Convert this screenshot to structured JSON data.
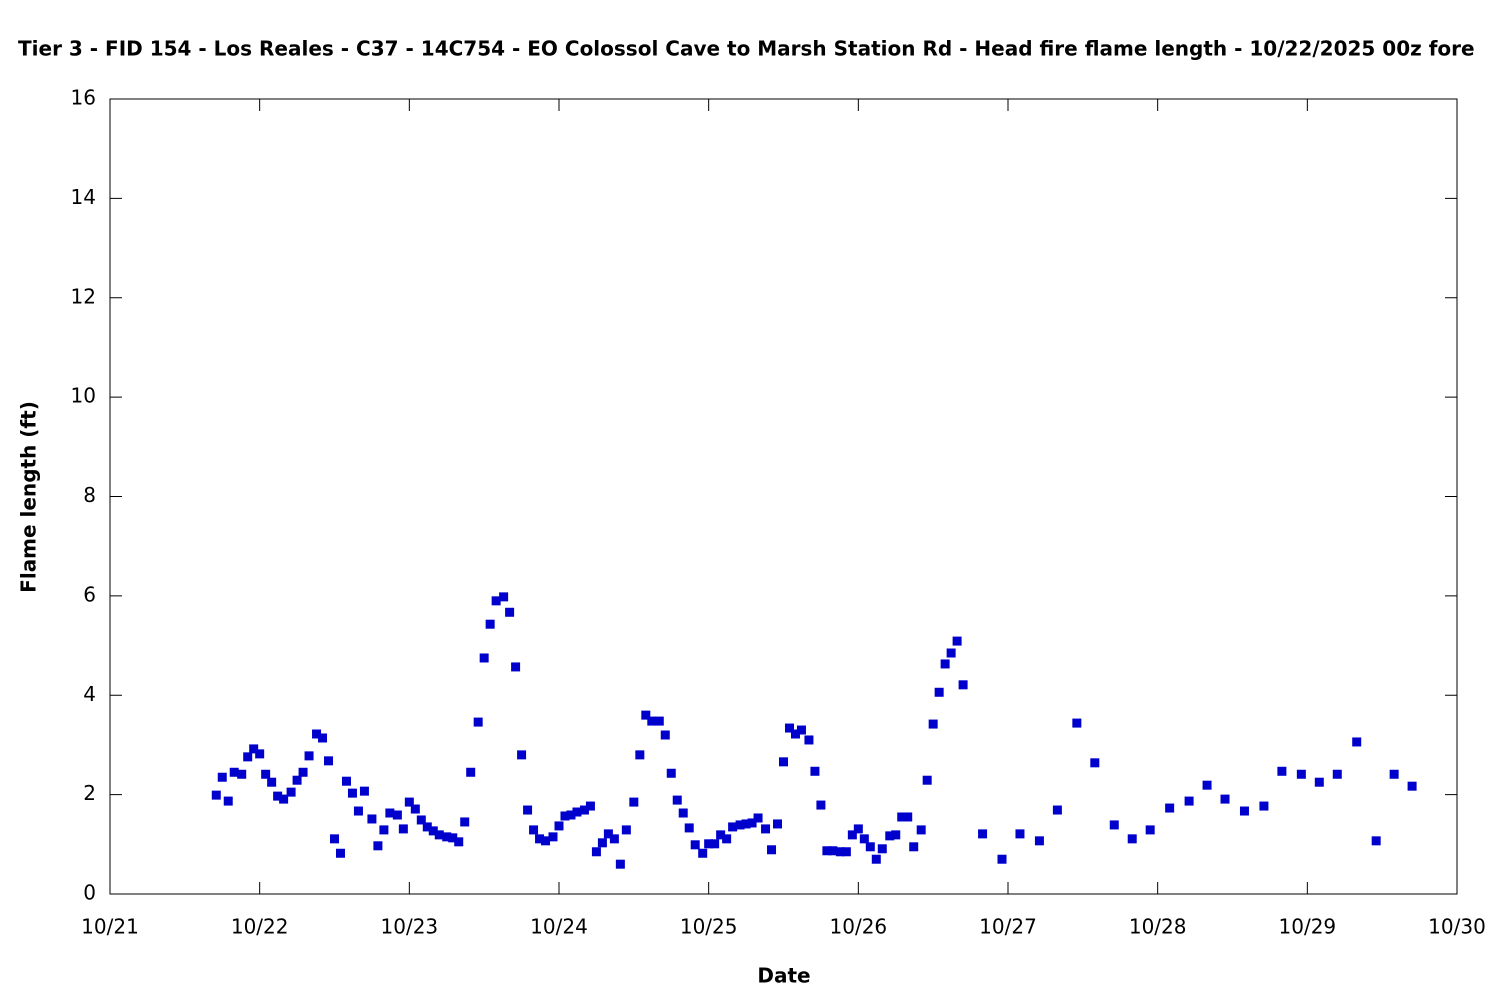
{
  "chart_data": {
    "type": "scatter",
    "title": "Tier 3 - FID 154 - Los Reales - C37 - 14C754 - EO Colossol Cave to Marsh Station Rd - Head fire flame length - 10/22/2025 00z fore",
    "x_label": "Date",
    "y_label": "Flame length (ft)",
    "xlim": [
      21,
      30
    ],
    "xticks": [
      {
        "value": 21,
        "label": "10/21"
      },
      {
        "value": 22,
        "label": "10/22"
      },
      {
        "value": 23,
        "label": "10/23"
      },
      {
        "value": 24,
        "label": "10/24"
      },
      {
        "value": 25,
        "label": "10/25"
      },
      {
        "value": 26,
        "label": "10/26"
      },
      {
        "value": 27,
        "label": "10/27"
      },
      {
        "value": 28,
        "label": "10/28"
      },
      {
        "value": 29,
        "label": "10/29"
      },
      {
        "value": 30,
        "label": "10/30"
      }
    ],
    "ylim": [
      0,
      16
    ],
    "yticks": [
      0,
      2,
      4,
      6,
      8,
      10,
      12,
      14,
      16
    ],
    "grid": false,
    "color": "#0000cc",
    "x": [
      21.71,
      21.75,
      21.79,
      21.83,
      21.88,
      21.92,
      21.96,
      22.0,
      22.04,
      22.08,
      22.12,
      22.16,
      22.21,
      22.25,
      22.29,
      22.33,
      22.38,
      22.42,
      22.46,
      22.5,
      22.54,
      22.58,
      22.62,
      22.66,
      22.7,
      22.75,
      22.79,
      22.83,
      22.87,
      22.92,
      22.96,
      23.0,
      23.04,
      23.08,
      23.12,
      23.16,
      23.2,
      23.25,
      23.29,
      23.33,
      23.37,
      23.41,
      23.46,
      23.5,
      23.54,
      23.58,
      23.63,
      23.67,
      23.71,
      23.75,
      23.79,
      23.83,
      23.87,
      23.91,
      23.96,
      24.0,
      24.04,
      24.08,
      24.12,
      24.17,
      24.21,
      24.25,
      24.29,
      24.33,
      24.37,
      24.41,
      24.45,
      24.5,
      24.54,
      24.58,
      24.62,
      24.67,
      24.71,
      24.75,
      24.79,
      24.83,
      24.87,
      24.91,
      24.96,
      25.0,
      25.04,
      25.08,
      25.12,
      25.16,
      25.21,
      25.25,
      25.29,
      25.33,
      25.38,
      25.42,
      25.46,
      25.5,
      25.54,
      25.58,
      25.62,
      25.67,
      25.71,
      25.75,
      25.79,
      25.83,
      25.88,
      25.92,
      25.96,
      26.0,
      26.04,
      26.08,
      26.12,
      26.16,
      26.21,
      26.25,
      26.29,
      26.33,
      26.37,
      26.42,
      26.46,
      26.5,
      26.54,
      26.58,
      26.62,
      26.66,
      26.7,
      26.83,
      26.96,
      27.08,
      27.21,
      27.33,
      27.46,
      27.58,
      27.71,
      27.83,
      27.95,
      28.08,
      28.21,
      28.33,
      28.45,
      28.58,
      28.71,
      28.83,
      28.96,
      29.08,
      29.2,
      29.33,
      29.46,
      29.58,
      29.7
    ],
    "values": [
      1.99,
      2.35,
      1.87,
      2.45,
      2.41,
      2.76,
      2.92,
      2.82,
      2.41,
      2.25,
      1.97,
      1.91,
      2.05,
      2.29,
      2.45,
      2.78,
      3.22,
      3.14,
      2.68,
      1.11,
      0.82,
      2.27,
      2.03,
      1.67,
      2.07,
      1.51,
      0.97,
      1.29,
      1.63,
      1.59,
      1.31,
      1.85,
      1.71,
      1.49,
      1.35,
      1.27,
      1.19,
      1.15,
      1.13,
      1.05,
      1.45,
      2.45,
      3.46,
      4.75,
      5.43,
      5.9,
      5.98,
      5.67,
      4.57,
      2.8,
      1.69,
      1.29,
      1.11,
      1.07,
      1.15,
      1.37,
      1.57,
      1.59,
      1.65,
      1.69,
      1.77,
      0.85,
      1.03,
      1.21,
      1.11,
      0.6,
      1.29,
      1.85,
      2.8,
      3.6,
      3.48,
      3.48,
      3.2,
      2.43,
      1.89,
      1.63,
      1.33,
      0.99,
      0.82,
      1.01,
      1.01,
      1.19,
      1.11,
      1.35,
      1.39,
      1.41,
      1.43,
      1.53,
      1.31,
      0.89,
      1.41,
      2.66,
      3.34,
      3.22,
      3.3,
      3.1,
      2.47,
      1.79,
      0.87,
      0.87,
      0.85,
      0.85,
      1.19,
      1.31,
      1.11,
      0.95,
      0.7,
      0.91,
      1.17,
      1.19,
      1.55,
      1.55,
      0.95,
      1.29,
      2.29,
      3.42,
      4.06,
      4.63,
      4.85,
      5.09,
      4.21,
      1.21,
      0.7,
      1.21,
      1.07,
      1.69,
      3.44,
      2.64,
      1.39,
      1.11,
      1.29,
      1.73,
      1.87,
      2.19,
      1.91,
      1.67,
      1.77,
      2.47,
      2.41,
      2.25,
      2.41,
      3.06,
      1.07,
      2.41,
      2.17
    ]
  }
}
